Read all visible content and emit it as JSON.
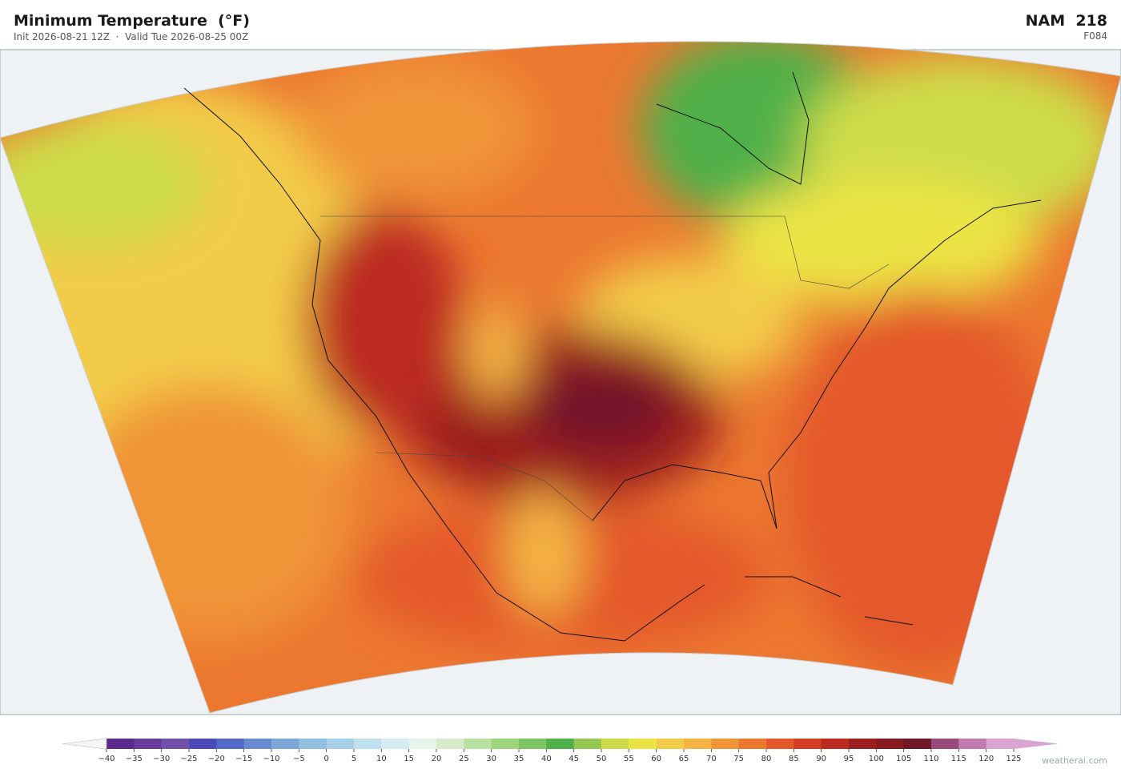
{
  "header": {
    "title": "Minimum Temperature  (°F)",
    "subtitle": "Init 2026-08-21 12Z  ·  Valid Tue 2026-08-25 00Z",
    "model": "NAM  218",
    "forecast_hour": "F084"
  },
  "colorbar": {
    "ticks": [
      {
        "value": -40,
        "label": "−40"
      },
      {
        "value": -35,
        "label": "−35"
      },
      {
        "value": -30,
        "label": "−30"
      },
      {
        "value": -25,
        "label": "−25"
      },
      {
        "value": -20,
        "label": "−20"
      },
      {
        "value": -15,
        "label": "−15"
      },
      {
        "value": -10,
        "label": "−10"
      },
      {
        "value": -5,
        "label": "−5"
      },
      0,
      5,
      10,
      15,
      20,
      25,
      30,
      35,
      40,
      45,
      50,
      55,
      60,
      65,
      70,
      75,
      80,
      85,
      90,
      95,
      100,
      105,
      110,
      115,
      120,
      125
    ],
    "colors": [
      "#5b2a8c",
      "#6a3a9a",
      "#7050a8",
      "#4a4bb8",
      "#5468c8",
      "#6a8ad0",
      "#7fa6d8",
      "#93c0e0",
      "#a8d0e8",
      "#bfe0ee",
      "#d5ecf0",
      "#e6f4ec",
      "#d4ecc8",
      "#b8e0a0",
      "#9cd47c",
      "#7cc464",
      "#4fb04a",
      "#94c850",
      "#cddc48",
      "#ece444",
      "#f2cc48",
      "#f4b444",
      "#f09438",
      "#ec7830",
      "#e4582a",
      "#d43c24",
      "#bc2a20",
      "#9c1e1e",
      "#861a1e",
      "#70182a",
      "#9a4a7a",
      "#c07ab0",
      "#d8a4d0"
    ],
    "extend_colors": [
      "#f6f6f8",
      "#d8a4d0"
    ]
  },
  "footer": {
    "credit": "weatherai.com"
  }
}
